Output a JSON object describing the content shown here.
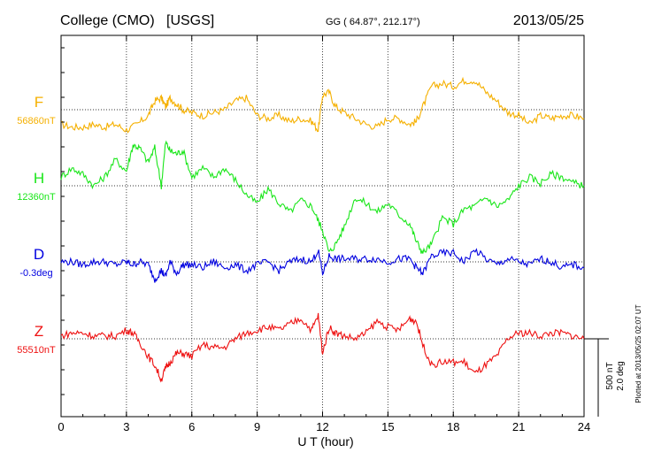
{
  "header": {
    "station": "College (CMO)",
    "source": "[USGS]",
    "coords": "GG ( 64.87°, 212.17°)",
    "date": "2013/05/25"
  },
  "side_note": "Plotted at 2013/05/25 02:07 UT",
  "scale": {
    "line1": "500 nT",
    "line2": "2.0 deg"
  },
  "chart_data": {
    "type": "line",
    "xlabel": "U T (hour)",
    "xlim": [
      0,
      24
    ],
    "xticks": [
      "0",
      "3",
      "6",
      "9",
      "12",
      "15",
      "18",
      "21",
      "24"
    ],
    "grid": true,
    "series": [
      {
        "name": "F",
        "baseline_label": "56860nT",
        "color": "#f5b000",
        "x": [
          0,
          0.5,
          1,
          1.5,
          2,
          2.5,
          3,
          3.5,
          4,
          4.3,
          4.6,
          4.8,
          5,
          5.3,
          5.6,
          6,
          6.5,
          7,
          7.5,
          8,
          8.5,
          9,
          9.5,
          10,
          10.5,
          11,
          11.5,
          11.8,
          12,
          12.3,
          12.6,
          13,
          13.5,
          14,
          14.5,
          15,
          15.5,
          16,
          16.3,
          16.6,
          17,
          17.5,
          18,
          18.5,
          19,
          19.5,
          20,
          20.5,
          21,
          21.5,
          22,
          22.5,
          23,
          23.5,
          24
        ],
        "values": [
          -0.5,
          -0.6,
          -0.6,
          -0.5,
          -0.6,
          -0.5,
          -0.7,
          -0.5,
          -0.2,
          0.3,
          0.4,
          0.1,
          0.4,
          0.2,
          0.0,
          -0.1,
          -0.2,
          -0.1,
          0.0,
          0.3,
          0.4,
          -0.2,
          -0.3,
          -0.2,
          -0.4,
          -0.3,
          -0.4,
          -0.7,
          0.5,
          0.6,
          0.1,
          -0.1,
          -0.3,
          -0.5,
          -0.6,
          -0.3,
          -0.3,
          -0.5,
          -0.4,
          0.1,
          0.8,
          0.9,
          0.8,
          1.0,
          1.0,
          0.6,
          0.3,
          -0.1,
          -0.2,
          -0.5,
          -0.2,
          -0.3,
          -0.2,
          -0.2,
          -0.3
        ]
      },
      {
        "name": "H",
        "baseline_label": "12360nT",
        "color": "#19e619",
        "x": [
          0,
          0.5,
          1,
          1.5,
          2,
          2.5,
          3,
          3.3,
          3.6,
          4,
          4.3,
          4.6,
          4.8,
          5,
          5.3,
          5.6,
          6,
          6.5,
          7,
          7.5,
          8,
          8.5,
          9,
          9.5,
          10,
          10.5,
          11,
          11.5,
          11.8,
          12,
          12.3,
          12.6,
          13,
          13.5,
          14,
          14.5,
          15,
          15.5,
          16,
          16.3,
          16.6,
          17,
          17.5,
          18,
          18.5,
          19,
          19.5,
          20,
          20.5,
          21,
          21.5,
          22,
          22.5,
          23,
          23.5,
          24
        ],
        "values": [
          0.3,
          0.6,
          0.4,
          0.0,
          0.3,
          0.9,
          0.5,
          1.4,
          1.3,
          0.8,
          1.3,
          0.0,
          1.5,
          1.2,
          1.1,
          1.2,
          0.3,
          0.6,
          0.3,
          0.6,
          0.2,
          -0.3,
          -0.6,
          -0.1,
          -0.6,
          -0.9,
          -0.5,
          -0.7,
          -1.2,
          -1.5,
          -2.3,
          -2.0,
          -1.4,
          -0.4,
          -0.6,
          -0.9,
          -0.6,
          -1.0,
          -1.3,
          -1.9,
          -2.3,
          -2.0,
          -1.1,
          -1.3,
          -0.8,
          -0.7,
          -0.4,
          -0.7,
          -0.5,
          0.0,
          0.3,
          0.1,
          0.4,
          0.3,
          0.1,
          0.0
        ]
      },
      {
        "name": "D",
        "baseline_label": "-0.3deg",
        "color": "#0000e0",
        "x": [
          0,
          0.5,
          1,
          1.5,
          2,
          2.5,
          3,
          3.3,
          3.6,
          4,
          4.3,
          4.6,
          4.8,
          5,
          5.3,
          5.6,
          6,
          6.5,
          7,
          7.5,
          8,
          8.5,
          9,
          9.5,
          10,
          10.5,
          11,
          11.5,
          11.8,
          12,
          12.3,
          12.6,
          13,
          13.5,
          14,
          14.5,
          15,
          15.5,
          16,
          16.3,
          16.6,
          17,
          17.5,
          18,
          18.5,
          19,
          19.5,
          20,
          20.5,
          21,
          21.5,
          22,
          22.5,
          23,
          23.5,
          24
        ],
        "values": [
          0.0,
          0.0,
          -0.1,
          0.0,
          0.0,
          -0.1,
          0.0,
          -0.1,
          0.0,
          -0.1,
          -0.6,
          -0.3,
          -0.5,
          0.0,
          -0.4,
          -0.1,
          -0.1,
          -0.2,
          0.0,
          -0.2,
          -0.1,
          -0.3,
          -0.1,
          0.0,
          -0.3,
          0.0,
          0.1,
          0.0,
          0.4,
          -0.4,
          0.2,
          0.1,
          0.1,
          0.1,
          0.1,
          0.1,
          0.0,
          0.1,
          0.1,
          -0.2,
          -0.4,
          0.2,
          0.3,
          0.3,
          0.0,
          0.4,
          0.1,
          -0.1,
          0.1,
          0.0,
          -0.1,
          0.1,
          0.0,
          -0.2,
          -0.1,
          -0.2
        ]
      },
      {
        "name": "Z",
        "baseline_label": "55510nT",
        "color": "#ee1111",
        "x": [
          0,
          0.5,
          1,
          1.5,
          2,
          2.5,
          3,
          3.3,
          3.6,
          4,
          4.3,
          4.6,
          4.8,
          5,
          5.3,
          5.6,
          6,
          6.5,
          7,
          7.5,
          8,
          8.5,
          9,
          9.5,
          10,
          10.5,
          11,
          11.5,
          11.8,
          12,
          12.3,
          12.6,
          13,
          13.5,
          14,
          14.5,
          15,
          15.5,
          16,
          16.3,
          16.6,
          17,
          17.5,
          18,
          18.5,
          19,
          19.5,
          20,
          20.5,
          21,
          21.5,
          22,
          22.5,
          23,
          23.5,
          24
        ],
        "values": [
          0.1,
          0.2,
          0.2,
          0.1,
          0.1,
          0.1,
          0.3,
          0.2,
          -0.1,
          -0.6,
          -0.9,
          -1.4,
          -1.0,
          -0.8,
          -0.5,
          -0.5,
          -0.6,
          -0.2,
          -0.3,
          -0.3,
          0.0,
          0.2,
          0.3,
          0.4,
          0.3,
          0.5,
          0.7,
          0.3,
          0.8,
          -0.5,
          0.4,
          0.2,
          0.1,
          0.0,
          0.2,
          0.6,
          0.4,
          0.3,
          0.7,
          0.6,
          -0.2,
          -0.9,
          -0.8,
          -0.8,
          -0.8,
          -1.2,
          -0.9,
          -0.6,
          0.0,
          0.2,
          0.2,
          0.1,
          0.2,
          0.2,
          0.1,
          0.0
        ]
      }
    ]
  }
}
